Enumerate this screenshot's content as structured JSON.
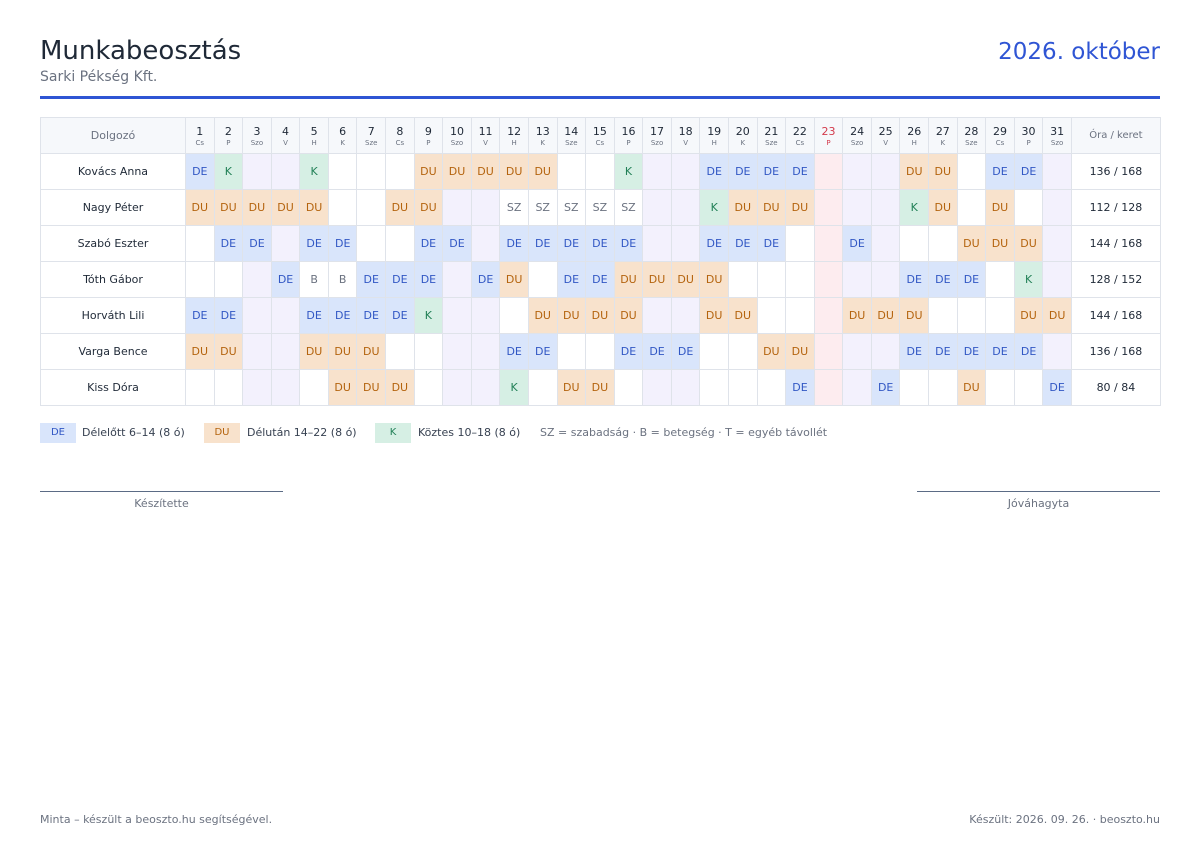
{
  "header": {
    "title": "Munkabeosztás",
    "subtitle": "Sarki Pékség Kft.",
    "month": "2026. október"
  },
  "colors": {
    "accent": "#2f55d4",
    "shift_DE": "#d9e5fb",
    "shift_DU": "#f8e2cc",
    "shift_K": "#d6efe4",
    "weekend": "#f3f1fd",
    "holiday": "#fdecef"
  },
  "table": {
    "name_header": "Dolgozó",
    "hours_header": "Óra / keret",
    "holiday_days": [
      23
    ],
    "days": [
      {
        "num": "1",
        "name": "Cs"
      },
      {
        "num": "2",
        "name": "P"
      },
      {
        "num": "3",
        "name": "Szo"
      },
      {
        "num": "4",
        "name": "V"
      },
      {
        "num": "5",
        "name": "H"
      },
      {
        "num": "6",
        "name": "K"
      },
      {
        "num": "7",
        "name": "Sze"
      },
      {
        "num": "8",
        "name": "Cs"
      },
      {
        "num": "9",
        "name": "P"
      },
      {
        "num": "10",
        "name": "Szo"
      },
      {
        "num": "11",
        "name": "V"
      },
      {
        "num": "12",
        "name": "H"
      },
      {
        "num": "13",
        "name": "K"
      },
      {
        "num": "14",
        "name": "Sze"
      },
      {
        "num": "15",
        "name": "Cs"
      },
      {
        "num": "16",
        "name": "P"
      },
      {
        "num": "17",
        "name": "Szo"
      },
      {
        "num": "18",
        "name": "V"
      },
      {
        "num": "19",
        "name": "H"
      },
      {
        "num": "20",
        "name": "K"
      },
      {
        "num": "21",
        "name": "Sze"
      },
      {
        "num": "22",
        "name": "Cs"
      },
      {
        "num": "23",
        "name": "P"
      },
      {
        "num": "24",
        "name": "Szo"
      },
      {
        "num": "25",
        "name": "V"
      },
      {
        "num": "26",
        "name": "H"
      },
      {
        "num": "27",
        "name": "K"
      },
      {
        "num": "28",
        "name": "Sze"
      },
      {
        "num": "29",
        "name": "Cs"
      },
      {
        "num": "30",
        "name": "P"
      },
      {
        "num": "31",
        "name": "Szo"
      }
    ],
    "employees": [
      {
        "name": "Kovács Anna",
        "hours": "136 / 168",
        "shifts": [
          "DE",
          "K",
          "",
          "",
          "K",
          "",
          "",
          "",
          "DU",
          "DU",
          "DU",
          "DU",
          "DU",
          "",
          "",
          "K",
          "",
          "",
          "DE",
          "DE",
          "DE",
          "DE",
          "",
          "",
          "",
          "DU",
          "DU",
          "",
          "DE",
          "DE",
          ""
        ]
      },
      {
        "name": "Nagy Péter",
        "hours": "112 / 128",
        "shifts": [
          "DU",
          "DU",
          "DU",
          "DU",
          "DU",
          "",
          "",
          "DU",
          "DU",
          "",
          "",
          "SZ",
          "SZ",
          "SZ",
          "SZ",
          "SZ",
          "",
          "",
          "K",
          "DU",
          "DU",
          "DU",
          "",
          "",
          "",
          "K",
          "DU",
          "",
          "DU",
          "",
          ""
        ]
      },
      {
        "name": "Szabó Eszter",
        "hours": "144 / 168",
        "shifts": [
          "",
          "DE",
          "DE",
          "",
          "DE",
          "DE",
          "",
          "",
          "DE",
          "DE",
          "",
          "DE",
          "DE",
          "DE",
          "DE",
          "DE",
          "",
          "",
          "DE",
          "DE",
          "DE",
          "",
          "",
          "DE",
          "",
          "",
          "",
          "DU",
          "DU",
          "DU",
          ""
        ]
      },
      {
        "name": "Tóth Gábor",
        "hours": "128 / 152",
        "shifts": [
          "",
          "",
          "",
          "DE",
          "B",
          "B",
          "DE",
          "DE",
          "DE",
          "",
          "DE",
          "DU",
          "",
          "DE",
          "DE",
          "DU",
          "DU",
          "DU",
          "DU",
          "",
          "",
          "",
          "",
          "",
          "",
          "DE",
          "DE",
          "DE",
          "",
          "K",
          ""
        ]
      },
      {
        "name": "Horváth Lili",
        "hours": "144 / 168",
        "shifts": [
          "DE",
          "DE",
          "",
          "",
          "DE",
          "DE",
          "DE",
          "DE",
          "K",
          "",
          "",
          "",
          "DU",
          "DU",
          "DU",
          "DU",
          "",
          "",
          "DU",
          "DU",
          "",
          "",
          "",
          "DU",
          "DU",
          "DU",
          "",
          "",
          "",
          "DU",
          "DU"
        ]
      },
      {
        "name": "Varga Bence",
        "hours": "136 / 168",
        "shifts": [
          "DU",
          "DU",
          "",
          "",
          "DU",
          "DU",
          "DU",
          "",
          "",
          "",
          "",
          "DE",
          "DE",
          "",
          "",
          "DE",
          "DE",
          "DE",
          "",
          "",
          "DU",
          "DU",
          "",
          "",
          "",
          "DE",
          "DE",
          "DE",
          "DE",
          "DE",
          ""
        ]
      },
      {
        "name": "Kiss Dóra",
        "hours": "80 / 84",
        "shifts": [
          "",
          "",
          "",
          "",
          "",
          "DU",
          "DU",
          "DU",
          "",
          "",
          "",
          "K",
          "",
          "DU",
          "DU",
          "",
          "",
          "",
          "",
          "",
          "",
          "DE",
          "",
          "",
          "DE",
          "",
          "",
          "DU",
          "",
          "",
          "DE"
        ]
      }
    ]
  },
  "legend": {
    "de_code": "DE",
    "de_text": "Délelőtt 6–14 (8 ó)",
    "du_code": "DU",
    "du_text": "Délután 14–22 (8 ó)",
    "k_code": "K",
    "k_text": "Köztes 10–18 (8 ó)",
    "note": "SZ = szabadság · B = betegség · T = egyéb távollét"
  },
  "signatures": {
    "left": "Készítette",
    "right": "Jóváhagyta"
  },
  "footer": {
    "left": "Minta – készült a beoszto.hu segítségével.",
    "right": "Készült: 2026. 09. 26. · beoszto.hu"
  }
}
